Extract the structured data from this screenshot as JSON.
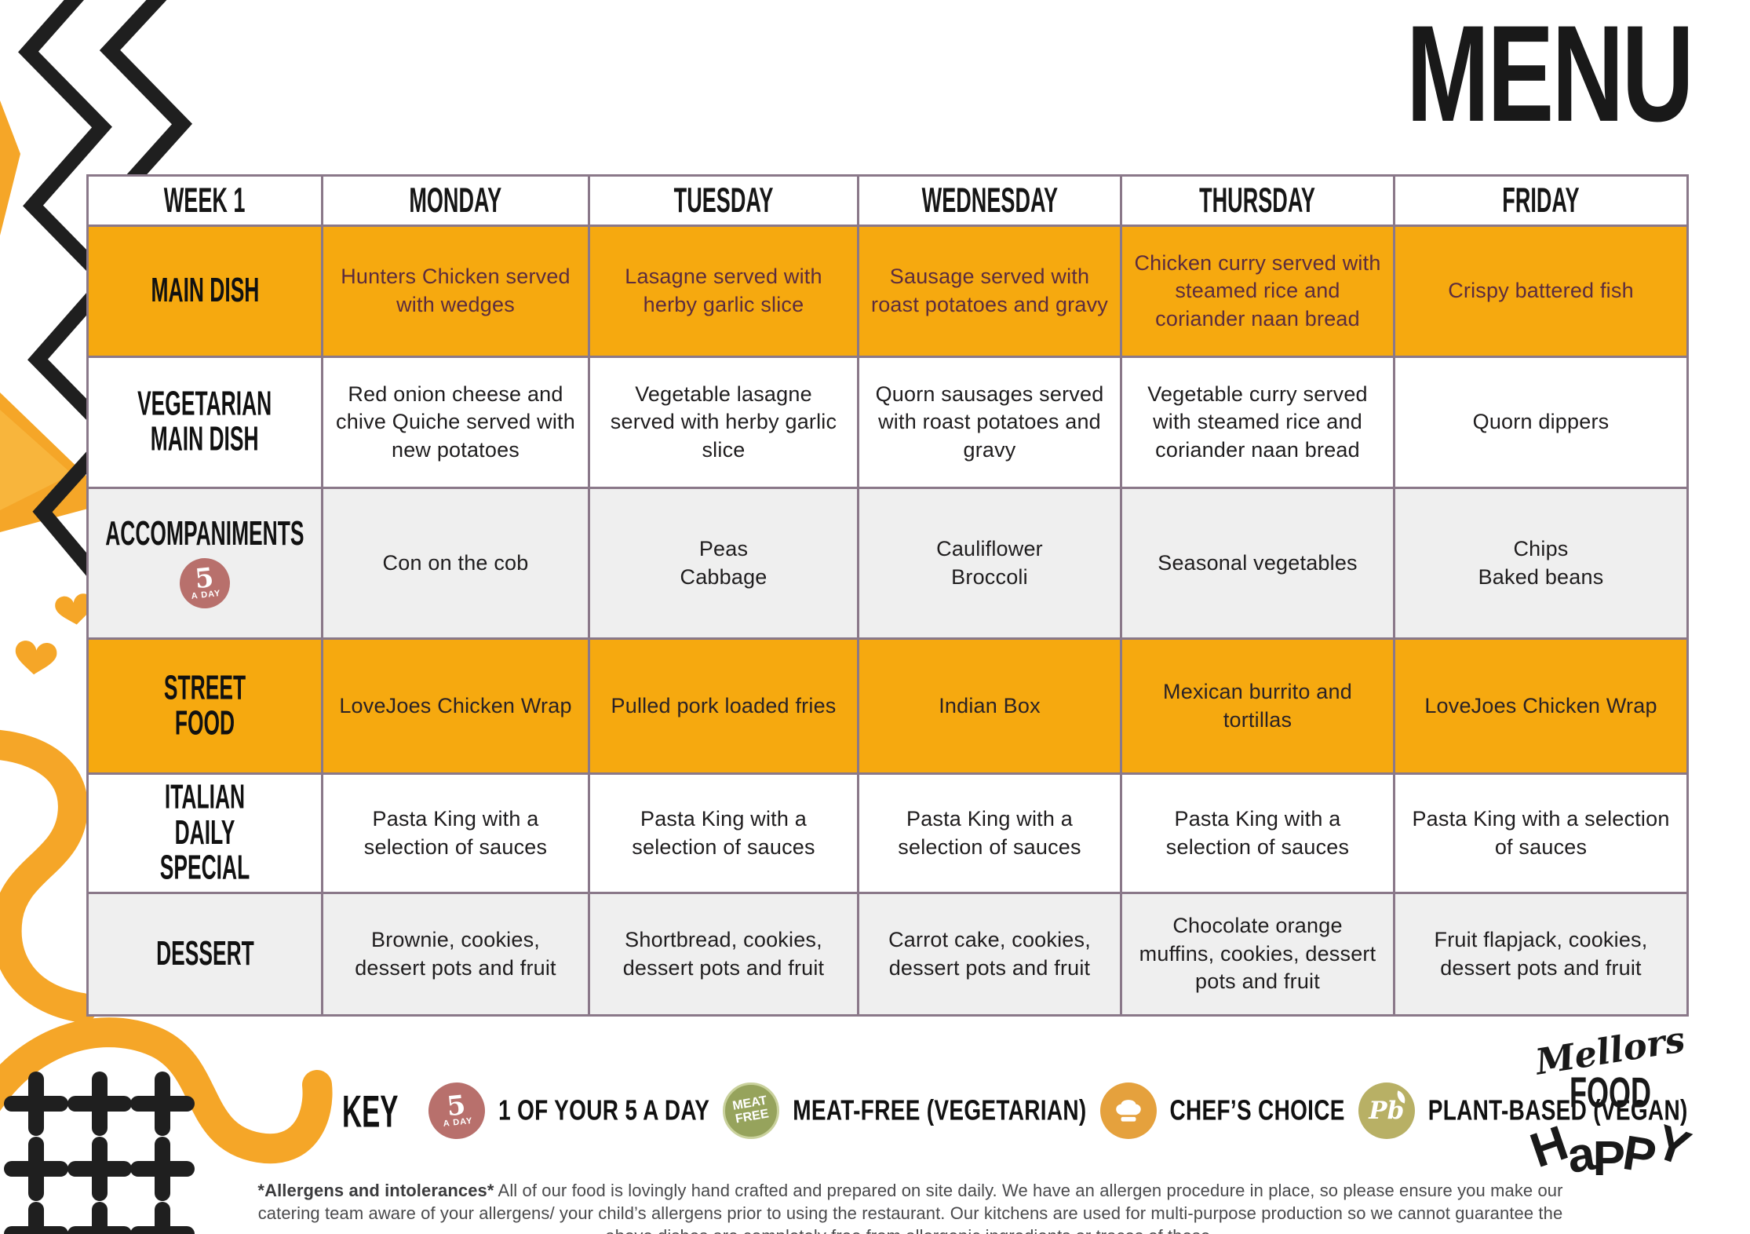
{
  "title": "MENU",
  "colors": {
    "brand_orange": "#F6A90F",
    "deco_orange": "#F5A628",
    "table_border": "#8A7889",
    "row_gray": "#EFEFEF",
    "main_dish_text": "#5C2C3E",
    "five_a_day_rose": "#B8706C",
    "meat_free_green": "#96A35C",
    "chef_orange": "#E5A13D",
    "plant_olive": "#B8B065"
  },
  "table": {
    "headers": [
      "WEEK 1",
      "MONDAY",
      "TUESDAY",
      "WEDNESDAY",
      "THURSDAY",
      "FRIDAY"
    ],
    "rows": [
      {
        "label": "MAIN DISH",
        "cells": [
          "Hunters Chicken served with wedges",
          "Lasagne served with herby garlic slice",
          "Sausage served with roast potatoes and gravy",
          "Chicken curry served with steamed rice and coriander naan bread",
          "Crispy battered fish"
        ]
      },
      {
        "label": "VEGETARIAN\nMAIN DISH",
        "cells": [
          "Red onion cheese and chive Quiche served with new potatoes",
          "Vegetable lasagne served with herby garlic slice",
          "Quorn sausages served with roast potatoes and gravy",
          "Vegetable curry served with steamed rice and coriander naan bread",
          "Quorn dippers"
        ]
      },
      {
        "label": "ACCOMPANIMENTS",
        "cells": [
          "Con on the cob",
          "Peas\nCabbage",
          "Cauliflower\nBroccoli",
          "Seasonal vegetables",
          "Chips\nBaked beans"
        ]
      },
      {
        "label": "STREET FOOD",
        "cells": [
          "LoveJoes Chicken Wrap",
          "Pulled pork loaded fries",
          "Indian Box",
          "Mexican burrito and tortillas",
          "LoveJoes Chicken Wrap"
        ]
      },
      {
        "label": "ITALIAN\nDAILY SPECIAL",
        "cells": [
          "Pasta King with a selection of sauces",
          "Pasta King with a selection of sauces",
          "Pasta King with a selection of sauces",
          "Pasta King with a selection of sauces",
          "Pasta King with a selection of sauces"
        ]
      },
      {
        "label": "DESSERT",
        "cells": [
          "Brownie, cookies, dessert pots and fruit",
          "Shortbread, cookies, dessert pots and fruit",
          "Carrot cake, cookies, dessert pots and fruit",
          "Chocolate orange muffins, cookies, dessert pots and fruit",
          "Fruit flapjack, cookies, dessert pots and fruit"
        ]
      }
    ]
  },
  "badge_5aday": {
    "number": "5",
    "label": "A DAY"
  },
  "key": {
    "title": "KEY",
    "items": [
      {
        "icon": "five-a-day-badge",
        "label": "1 OF YOUR 5 A DAY"
      },
      {
        "icon": "meat-free-badge",
        "icon_text": "MEAT\nFREE",
        "label": "MEAT-FREE (VEGETARIAN)"
      },
      {
        "icon": "chef-hat-badge",
        "label": "CHEF’S CHOICE"
      },
      {
        "icon": "plant-based-badge",
        "icon_text": "Pb",
        "label": "PLANT-BASED (VEGAN)"
      }
    ]
  },
  "footer": {
    "allergens_lead": "*Allergens and intolerances*",
    "allergens_text": " All of our food is lovingly hand crafted and prepared on site daily. We have an allergen procedure in place, so please ensure you make our catering team aware of your allergens/ your child’s allergens prior to using the restaurant. Our kitchens are used for multi-purpose production so we cannot guarantee the above dishes are completely free from allergenic ingredients or traces of these."
  },
  "logo": {
    "script": "Mellors",
    "word1": "FOOD",
    "word2": "HaPPY"
  }
}
